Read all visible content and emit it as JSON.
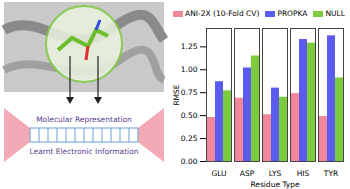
{
  "chart_data": {
    "type": "bar",
    "categories": [
      "GLU",
      "ASP",
      "LYS",
      "HIS",
      "TYR"
    ],
    "series": [
      {
        "name": "ANI-2X (10-Fold CV)",
        "color": "#f0889a",
        "values": [
          0.48,
          0.69,
          0.51,
          0.74,
          0.49
        ]
      },
      {
        "name": "PROPKA",
        "color": "#5b5bef",
        "values": [
          0.87,
          1.02,
          0.8,
          1.33,
          1.37
        ]
      },
      {
        "name": "NULL",
        "color": "#7dcc3e",
        "values": [
          0.77,
          1.15,
          0.7,
          1.29,
          0.91
        ]
      }
    ],
    "x_label": "Residue Type",
    "y_label": "RMSE",
    "ylim": [
      0,
      1.45
    ],
    "yticks": [
      {
        "value": 0,
        "label": "0.00"
      },
      {
        "value": 0.25,
        "label": "0.25"
      },
      {
        "value": 0.5,
        "label": "0.50"
      },
      {
        "value": 0.75,
        "label": "0.75"
      },
      {
        "value": 1,
        "label": "1.00"
      },
      {
        "value": 1.25,
        "label": "1.25"
      }
    ],
    "legend": "top",
    "grid": false
  },
  "diagram": {
    "labels": [
      "Molecular Representation",
      "Learnt Electronic Information"
    ]
  }
}
